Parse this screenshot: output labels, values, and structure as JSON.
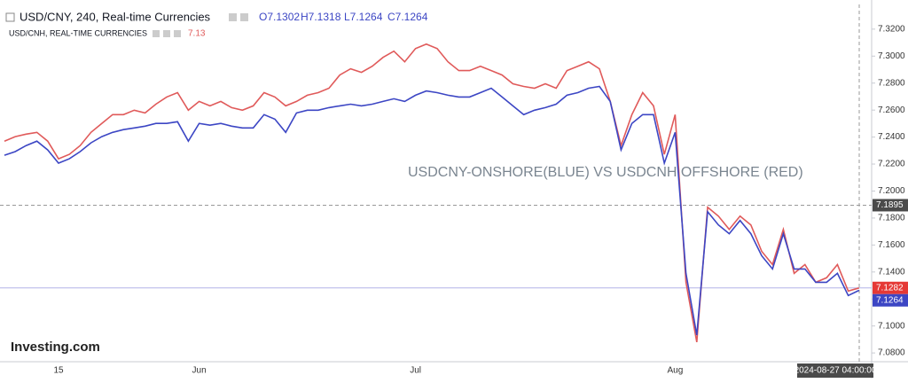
{
  "chart_data": {
    "type": "line",
    "annotation": "USDCNY-ONSHORE(BLUE) VS USDCNH OFFSHORE (RED)",
    "logo": "Investing.com",
    "series": [
      {
        "name": "USD/CNY, 240, Real-time Currencies",
        "color": "#3c46c4",
        "ohlc": [
          "O7.1302",
          "H7.1318",
          "L7.1264",
          "C7.1264"
        ],
        "last": 7.1264,
        "values": [
          7.2265,
          7.2292,
          7.2337,
          7.237,
          7.2305,
          7.2207,
          7.2239,
          7.2292,
          7.2357,
          7.2403,
          7.2435,
          7.2455,
          7.2468,
          7.2481,
          7.2501,
          7.2501,
          7.2514,
          7.237,
          7.2501,
          7.2488,
          7.2501,
          7.2481,
          7.2468,
          7.2468,
          7.2566,
          7.2533,
          7.2435,
          7.2579,
          7.2599,
          7.2599,
          7.2618,
          7.2631,
          7.2644,
          7.2631,
          7.2644,
          7.2664,
          7.2684,
          7.2664,
          7.271,
          7.2742,
          7.2729,
          7.271,
          7.2697,
          7.2697,
          7.2729,
          7.2762,
          7.2697,
          7.2631,
          7.2566,
          7.2599,
          7.2618,
          7.2644,
          7.271,
          7.2729,
          7.2762,
          7.2775,
          7.2664,
          7.2305,
          7.2501,
          7.2566,
          7.2566,
          7.2207,
          7.2435,
          7.139,
          7.0932,
          7.1847,
          7.1749,
          7.1684,
          7.1782,
          7.1684,
          7.152,
          7.1422,
          7.1684,
          7.1422,
          7.1422,
          7.1324,
          7.1324,
          7.139,
          7.1226,
          7.1264
        ]
      },
      {
        "name": "USD/CNH, REAL-TIME CURRENCIES",
        "color": "#e05a5a",
        "last_label": "7.13",
        "last": 7.1282,
        "values": [
          7.237,
          7.2403,
          7.2422,
          7.2435,
          7.237,
          7.2239,
          7.2272,
          7.2337,
          7.2435,
          7.2501,
          7.2566,
          7.2566,
          7.2599,
          7.2579,
          7.2644,
          7.2697,
          7.2729,
          7.2599,
          7.2664,
          7.2631,
          7.2664,
          7.2618,
          7.2599,
          7.2631,
          7.2729,
          7.2697,
          7.2631,
          7.2664,
          7.271,
          7.2729,
          7.2762,
          7.286,
          7.2906,
          7.288,
          7.2925,
          7.2991,
          7.3037,
          7.2958,
          7.3056,
          7.3089,
          7.3056,
          7.2958,
          7.2893,
          7.2893,
          7.2925,
          7.2893,
          7.286,
          7.2795,
          7.2775,
          7.2762,
          7.2795,
          7.2762,
          7.2893,
          7.2925,
          7.2958,
          7.2906,
          7.2664,
          7.2337,
          7.2566,
          7.2729,
          7.2631,
          7.2272,
          7.2566,
          7.1324,
          7.088,
          7.188,
          7.1814,
          7.1716,
          7.1814,
          7.1749,
          7.1553,
          7.1455,
          7.1716,
          7.139,
          7.1455,
          7.1324,
          7.1357,
          7.1455,
          7.1259,
          7.1282
        ]
      }
    ],
    "categories": [
      null,
      null,
      null,
      null,
      null,
      "15",
      null,
      null,
      null,
      null,
      null,
      null,
      null,
      null,
      null,
      null,
      null,
      null,
      "Jun",
      null,
      null,
      null,
      null,
      null,
      null,
      null,
      null,
      null,
      null,
      null,
      null,
      null,
      null,
      null,
      null,
      null,
      null,
      null,
      "Jul",
      null,
      null,
      null,
      null,
      null,
      null,
      null,
      null,
      null,
      null,
      null,
      null,
      null,
      null,
      null,
      null,
      null,
      null,
      null,
      null,
      null,
      null,
      null,
      "Aug",
      null,
      null,
      null,
      null,
      null,
      null,
      null,
      null,
      null,
      null,
      null,
      null,
      null,
      null,
      null,
      null,
      null
    ],
    "cursor_label": "2024-08-27 04:00:00",
    "crosshair_y": 7.1895,
    "ylim": [
      7.0735,
      7.3383
    ],
    "yticks": [
      {
        "value": 7.08,
        "label": "7.0800"
      },
      {
        "value": 7.1,
        "label": "7.1000"
      },
      {
        "value": 7.12,
        "label": "7.1200"
      },
      {
        "value": 7.14,
        "label": "7.1400"
      },
      {
        "value": 7.16,
        "label": "7.1600"
      },
      {
        "value": 7.18,
        "label": "7.1800"
      },
      {
        "value": 7.2,
        "label": "7.2000"
      },
      {
        "value": 7.22,
        "label": "7.2200"
      },
      {
        "value": 7.24,
        "label": "7.2400"
      },
      {
        "value": 7.26,
        "label": "7.2600"
      },
      {
        "value": 7.28,
        "label": "7.2800"
      },
      {
        "value": 7.3,
        "label": "7.3000"
      },
      {
        "value": 7.32,
        "label": "7.3200"
      }
    ],
    "grid": false
  }
}
